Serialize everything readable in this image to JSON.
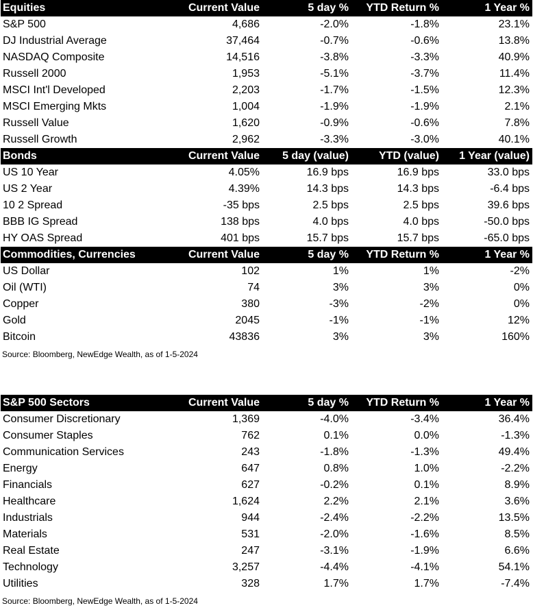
{
  "top_table": {
    "sections": [
      {
        "header": [
          "Equities",
          "Current Value",
          "5 day %",
          "YTD Return %",
          "1 Year %"
        ],
        "rows": [
          [
            "S&P 500",
            "4,686",
            "-2.0%",
            "-1.8%",
            "23.1%"
          ],
          [
            "DJ Industrial Average",
            "37,464",
            "-0.7%",
            "-0.6%",
            "13.8%"
          ],
          [
            "NASDAQ Composite",
            "14,516",
            "-3.8%",
            "-3.3%",
            "40.9%"
          ],
          [
            "Russell 2000",
            "1,953",
            "-5.1%",
            "-3.7%",
            "11.4%"
          ],
          [
            "MSCI Int'l Developed",
            "2,203",
            "-1.7%",
            "-1.5%",
            "12.3%"
          ],
          [
            "MSCI Emerging Mkts",
            "1,004",
            "-1.9%",
            "-1.9%",
            "2.1%"
          ],
          [
            "Russell Value",
            "1,620",
            "-0.9%",
            "-0.6%",
            "7.8%"
          ],
          [
            "Russell Growth",
            "2,962",
            "-3.3%",
            "-3.0%",
            "40.1%"
          ]
        ]
      },
      {
        "header": [
          "Bonds",
          "Current Value",
          "5 day (value)",
          "YTD (value)",
          "1 Year (value)"
        ],
        "rows": [
          [
            "US 10 Year",
            "4.05%",
            "16.9 bps",
            "16.9 bps",
            "33.0 bps"
          ],
          [
            "US 2 Year",
            "4.39%",
            "14.3 bps",
            "14.3 bps",
            "-6.4 bps"
          ],
          [
            "10 2 Spread",
            "-35 bps",
            "2.5 bps",
            "2.5 bps",
            "39.6 bps"
          ],
          [
            "BBB IG Spread",
            "138 bps",
            "4.0 bps",
            "4.0 bps",
            "-50.0 bps"
          ],
          [
            "HY OAS Spread",
            "401 bps",
            "15.7 bps",
            "15.7 bps",
            "-65.0 bps"
          ]
        ]
      },
      {
        "header": [
          "Commodities, Currencies",
          "Current Value",
          "5 day %",
          "YTD Return %",
          "1 Year %"
        ],
        "rows": [
          [
            "US Dollar",
            "102",
            "1%",
            "1%",
            "-2%"
          ],
          [
            "Oil (WTI)",
            "74",
            "3%",
            "3%",
            "0%"
          ],
          [
            "Copper",
            "380",
            "-3%",
            "-2%",
            "0%"
          ],
          [
            "Gold",
            "2045",
            "-1%",
            "-1%",
            "12%"
          ],
          [
            "Bitcoin",
            "43836",
            "3%",
            "3%",
            "160%"
          ]
        ]
      }
    ],
    "source": "Source: Bloomberg, NewEdge Wealth, as of 1-5-2024"
  },
  "sectors_table": {
    "sections": [
      {
        "header": [
          "S&P 500 Sectors",
          "Current Value",
          "5 day %",
          "YTD Return %",
          "1 Year %"
        ],
        "rows": [
          [
            "Consumer Discretionary",
            "1,369",
            "-4.0%",
            "-3.4%",
            "36.4%"
          ],
          [
            "Consumer Staples",
            "762",
            "0.1%",
            "0.0%",
            "-1.3%"
          ],
          [
            "Communication Services",
            "243",
            "-1.8%",
            "-1.3%",
            "49.4%"
          ],
          [
            "Energy",
            "647",
            "0.8%",
            "1.0%",
            "-2.2%"
          ],
          [
            "Financials",
            "627",
            "-0.2%",
            "0.1%",
            "8.9%"
          ],
          [
            "Healthcare",
            "1,624",
            "2.2%",
            "2.1%",
            "3.6%"
          ],
          [
            "Industrials",
            "944",
            "-2.4%",
            "-2.2%",
            "13.5%"
          ],
          [
            "Materials",
            "531",
            "-2.0%",
            "-1.6%",
            "8.5%"
          ],
          [
            "Real Estate",
            "247",
            "-3.1%",
            "-1.9%",
            "6.6%"
          ],
          [
            "Technology",
            "3,257",
            "-4.4%",
            "-4.1%",
            "54.1%"
          ],
          [
            "Utilities",
            "328",
            "1.7%",
            "1.7%",
            "-7.4%"
          ]
        ]
      }
    ],
    "source": "Source: Bloomberg, NewEdge Wealth, as of 1-5-2024"
  }
}
